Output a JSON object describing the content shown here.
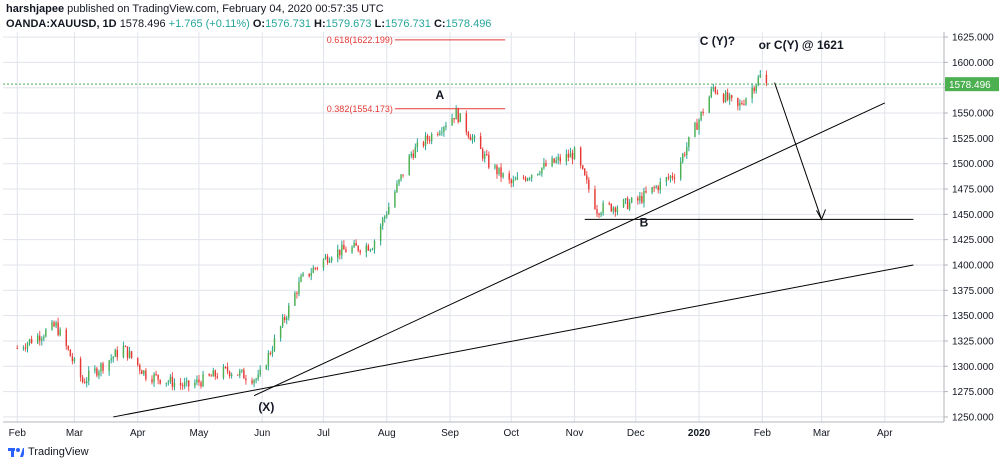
{
  "header": {
    "line1_user": "harshjapee",
    "line1_rest": " published on TradingView.com, February 04, 2020 00:57:35 UTC",
    "symbol": "OANDA:XAUUSD, 1D",
    "last": "1578.496",
    "change": "+1.765 (+0.11%)",
    "ohlc_o_label": "O:",
    "ohlc_o": "1576.731",
    "ohlc_h_label": "H:",
    "ohlc_h": "1579.673",
    "ohlc_l_label": "L:",
    "ohlc_l": "1576.731",
    "ohlc_c_label": "C:",
    "ohlc_c": "1578.496"
  },
  "footer": {
    "brand": "TradingView"
  },
  "colors": {
    "up": "#26a69a",
    "down": "#ef5350",
    "bull_body": "#4caf50",
    "bear_body": "#e53935",
    "fib": "#e53935",
    "price_line": "#4caf50",
    "price_badge": "#4caf50",
    "trendline": "#000000",
    "grid": "#e0e3eb"
  },
  "chart_data": {
    "type": "candlestick",
    "instrument": "OANDA:XAUUSD",
    "interval": "1D",
    "ylim": [
      1245,
      1630
    ],
    "y_ticks": [
      1250,
      1275,
      1300,
      1325,
      1350,
      1375,
      1400,
      1425,
      1450,
      1475,
      1500,
      1525,
      1550,
      1575,
      1600,
      1625
    ],
    "y_tick_labels": [
      "1250.000",
      "1275.000",
      "1300.000",
      "1325.000",
      "1350.000",
      "1375.000",
      "1400.000",
      "1425.000",
      "1450.000",
      "1475.000",
      "1500.000",
      "1525.000",
      "1550.000",
      "1575.000",
      "1600.000",
      "1625.000"
    ],
    "x_ticks": [
      {
        "label": "Feb",
        "date": "2019-02-01"
      },
      {
        "label": "Mar",
        "date": "2019-03-01"
      },
      {
        "label": "Apr",
        "date": "2019-04-01"
      },
      {
        "label": "May",
        "date": "2019-05-01"
      },
      {
        "label": "Jun",
        "date": "2019-06-01"
      },
      {
        "label": "Jul",
        "date": "2019-07-01"
      },
      {
        "label": "Aug",
        "date": "2019-08-01"
      },
      {
        "label": "Sep",
        "date": "2019-09-01"
      },
      {
        "label": "Oct",
        "date": "2019-10-01"
      },
      {
        "label": "Nov",
        "date": "2019-11-01"
      },
      {
        "label": "Dec",
        "date": "2019-12-01"
      },
      {
        "label": "2020",
        "date": "2020-01-01"
      },
      {
        "label": "Feb",
        "date": "2020-02-01"
      },
      {
        "label": "Mar",
        "date": "2020-03-01"
      },
      {
        "label": "Apr",
        "date": "2020-04-01"
      }
    ],
    "grid": true,
    "closes": [
      {
        "date": "2019-02-01",
        "close": 1318
      },
      {
        "date": "2019-02-20",
        "close": 1340
      },
      {
        "date": "2019-03-05",
        "close": 1285
      },
      {
        "date": "2019-03-25",
        "close": 1318
      },
      {
        "date": "2019-04-05",
        "close": 1292
      },
      {
        "date": "2019-04-25",
        "close": 1280
      },
      {
        "date": "2019-05-15",
        "close": 1296
      },
      {
        "date": "2019-05-30",
        "close": 1287
      },
      {
        "date": "2019-06-20",
        "close": 1385
      },
      {
        "date": "2019-07-05",
        "close": 1412
      },
      {
        "date": "2019-07-25",
        "close": 1420
      },
      {
        "date": "2019-08-13",
        "close": 1510
      },
      {
        "date": "2019-09-04",
        "close": 1550
      },
      {
        "date": "2019-09-20",
        "close": 1500
      },
      {
        "date": "2019-10-01",
        "close": 1480
      },
      {
        "date": "2019-10-15",
        "close": 1495
      },
      {
        "date": "2019-11-01",
        "close": 1510
      },
      {
        "date": "2019-11-12",
        "close": 1455
      },
      {
        "date": "2019-12-01",
        "close": 1462
      },
      {
        "date": "2019-12-20",
        "close": 1490
      },
      {
        "date": "2020-01-08",
        "close": 1575
      },
      {
        "date": "2020-01-20",
        "close": 1555
      },
      {
        "date": "2020-01-31",
        "close": 1586
      },
      {
        "date": "2020-02-03",
        "close": 1578
      }
    ],
    "current_price": 1578.496,
    "current_price_label": "1578.496",
    "fib_levels": [
      {
        "label": "0.618(1622.199)",
        "value": 1622.199
      },
      {
        "label": "0.382(1554.173)",
        "value": 1554.173
      }
    ],
    "wave_labels": [
      {
        "text": "A",
        "date": "2019-08-27",
        "value": 1564
      },
      {
        "text": "C (Y)?",
        "date": "2020-01-10",
        "value": 1617
      },
      {
        "text": "or C(Y) @ 1621",
        "date": "2020-02-20",
        "value": 1613
      },
      {
        "text": "B",
        "date": "2019-12-05",
        "value": 1438
      },
      {
        "text": "(X)",
        "date": "2019-06-03",
        "value": 1256
      }
    ],
    "trendlines": [
      {
        "name": "upper",
        "from": {
          "date": "2019-05-28",
          "value": 1271
        },
        "to": {
          "date": "2020-04-01",
          "value": 1560
        }
      },
      {
        "name": "lower",
        "from": {
          "date": "2019-03-20",
          "value": 1250
        },
        "to": {
          "date": "2020-04-15",
          "value": 1400
        }
      },
      {
        "name": "support",
        "from": {
          "date": "2019-11-06",
          "value": 1445
        },
        "to": {
          "date": "2020-04-15",
          "value": 1445
        }
      },
      {
        "name": "projection",
        "from": {
          "date": "2020-02-07",
          "value": 1580
        },
        "to": {
          "date": "2020-03-01",
          "value": 1445
        }
      }
    ]
  }
}
